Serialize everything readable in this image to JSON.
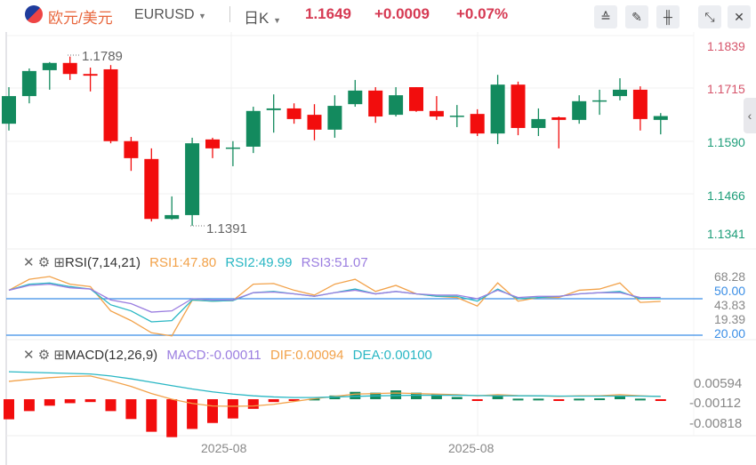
{
  "header": {
    "pair_name": "欧元/美元",
    "symbol": "EURUSD",
    "period": "日K",
    "price": "1.1649",
    "change": "+0.0009",
    "change_pct": "+0.07%",
    "toolbar": [
      {
        "icon": "indicator-icon",
        "glyph": "≙"
      },
      {
        "icon": "draw-pencil-icon",
        "glyph": "✎"
      },
      {
        "icon": "candlestick-type-icon",
        "glyph": "╫"
      },
      {
        "icon": "collapse-arrows-icon",
        "glyph": "⤡"
      },
      {
        "icon": "close-icon",
        "glyph": "✕"
      }
    ]
  },
  "colors": {
    "up": "#138a5e",
    "down": "#f20d0d",
    "accent": "#d63a53",
    "rsi1": "#f2a24a",
    "rsi2": "#2ab7c4",
    "rsi3": "#9b7ee0",
    "level": "#3a8ee6"
  },
  "price_axis": {
    "ticks": [
      "1.1839",
      "1.1715",
      "1.1590",
      "1.1466",
      "1.1341"
    ],
    "high_label": "1.1789",
    "low_label": "1.1391"
  },
  "x_axis": {
    "ticks": [
      "2025-08",
      "2025-08"
    ]
  },
  "rsi": {
    "title": "RSI(7,14,21)",
    "rsi1": "RSI1:47.80",
    "rsi2": "RSI2:49.99",
    "rsi3": "RSI3:51.07",
    "axis": [
      "68.28",
      "50.00",
      "43.83",
      "19.39",
      "20.00"
    ]
  },
  "macd": {
    "title": "MACD(12,26,9)",
    "macd": "MACD:-0.00011",
    "dif": "DIF:0.00094",
    "dea": "DEA:0.00100",
    "axis": [
      "0.00594",
      "-0.00112",
      "-0.00818"
    ]
  },
  "chart_data": {
    "type": "candlestick",
    "ylim": [
      1.1341,
      1.1839
    ],
    "candles": [
      [
        1.1631,
        1.1717,
        1.1615,
        1.1696
      ],
      [
        1.1696,
        1.1761,
        1.1679,
        1.1755
      ],
      [
        1.1757,
        1.1776,
        1.1711,
        1.1774
      ],
      [
        1.1774,
        1.1789,
        1.1734,
        1.1748
      ],
      [
        1.1748,
        1.1763,
        1.1707,
        1.1744
      ],
      [
        1.1759,
        1.1769,
        1.1585,
        1.159
      ],
      [
        1.159,
        1.16,
        1.152,
        1.155
      ],
      [
        1.1548,
        1.1573,
        1.1401,
        1.1407
      ],
      [
        1.1407,
        1.146,
        1.1405,
        1.1416
      ],
      [
        1.1416,
        1.1598,
        1.1391,
        1.1585
      ],
      [
        1.1594,
        1.1598,
        1.155,
        1.1573
      ],
      [
        1.1573,
        1.159,
        1.1531,
        1.1575
      ],
      [
        1.1577,
        1.1671,
        1.1562,
        1.1661
      ],
      [
        1.1663,
        1.17,
        1.161,
        1.1667
      ],
      [
        1.1667,
        1.1679,
        1.1631,
        1.1642
      ],
      [
        1.1652,
        1.1677,
        1.1592,
        1.1617
      ],
      [
        1.1617,
        1.1698,
        1.1598,
        1.1673
      ],
      [
        1.1677,
        1.1734,
        1.1671,
        1.1709
      ],
      [
        1.1709,
        1.1717,
        1.1633,
        1.1648
      ],
      [
        1.1652,
        1.1717,
        1.1648,
        1.1698
      ],
      [
        1.1717,
        1.1717,
        1.1659,
        1.1661
      ],
      [
        1.1661,
        1.1696,
        1.164,
        1.1648
      ],
      [
        1.1648,
        1.1675,
        1.1623,
        1.165
      ],
      [
        1.1654,
        1.1665,
        1.1602,
        1.1608
      ],
      [
        1.1608,
        1.1746,
        1.1583,
        1.1723
      ],
      [
        1.1723,
        1.173,
        1.1604,
        1.1621
      ],
      [
        1.1621,
        1.1667,
        1.1602,
        1.1642
      ],
      [
        1.1646,
        1.1648,
        1.1573,
        1.164
      ],
      [
        1.164,
        1.1698,
        1.1631,
        1.1684
      ],
      [
        1.1684,
        1.1711,
        1.1652,
        1.1686
      ],
      [
        1.1696,
        1.1738,
        1.1686,
        1.1711
      ],
      [
        1.1711,
        1.1719,
        1.1615,
        1.1642
      ],
      [
        1.164,
        1.1656,
        1.1606,
        1.1649
      ]
    ],
    "candle_fields": [
      "open",
      "high",
      "low",
      "close"
    ],
    "rsi1": [
      57,
      66,
      68.3,
      62,
      60,
      40,
      32,
      22,
      19.4,
      48.8,
      48,
      48.5,
      62,
      62.5,
      57,
      53,
      62,
      66,
      56,
      61,
      54,
      52,
      51,
      44,
      63,
      48,
      51,
      51,
      57,
      58,
      63,
      47,
      47.8
    ],
    "rsi2": [
      57,
      62,
      63,
      60,
      58,
      45,
      40,
      31,
      32,
      49,
      48,
      48.5,
      55,
      56,
      54,
      52,
      55,
      58,
      54,
      56,
      54,
      52,
      52,
      48,
      58,
      50,
      51,
      52,
      54,
      55,
      56,
      50,
      49.99
    ],
    "rsi3": [
      57,
      61,
      62,
      59,
      58,
      49,
      46,
      39,
      40,
      50,
      49,
      49,
      55,
      55.5,
      54,
      52,
      55,
      57,
      54,
      56,
      54,
      53,
      53,
      50,
      57,
      51,
      52,
      52,
      54,
      55,
      55,
      51,
      51.07
    ],
    "rsi_levels": [
      50,
      20
    ],
    "macd_hist": [
      -0.0071,
      -0.0042,
      -0.0023,
      -0.0014,
      -0.001,
      -0.0042,
      -0.007,
      -0.0115,
      -0.0134,
      -0.0105,
      -0.0084,
      -0.0068,
      -0.0034,
      -0.001,
      -0.0005,
      0.0002,
      0.0013,
      0.0026,
      0.0023,
      0.0031,
      0.0023,
      0.0018,
      0.0008,
      -0.0002,
      0.0013,
      0.0002,
      0.0002,
      -0.0002,
      0.0002,
      0.0003,
      0.0013,
      0.0002,
      -0.00011
    ],
    "dif": [
      0.0063,
      0.007,
      0.0076,
      0.008,
      0.0082,
      0.0065,
      0.0045,
      0.002,
      0.0,
      -0.0015,
      -0.0024,
      -0.0025,
      -0.0024,
      -0.0018,
      -0.0008,
      0.0002,
      0.001,
      0.0018,
      0.002,
      0.0022,
      0.002,
      0.0018,
      0.0016,
      0.0012,
      0.0016,
      0.0013,
      0.0012,
      0.001,
      0.0012,
      0.0012,
      0.0016,
      0.0012,
      0.00094
    ],
    "dea": [
      0.0097,
      0.0095,
      0.0093,
      0.0091,
      0.0089,
      0.0082,
      0.0072,
      0.006,
      0.0048,
      0.0036,
      0.0026,
      0.0018,
      0.0012,
      0.0008,
      0.0006,
      0.0006,
      0.0008,
      0.001,
      0.0012,
      0.0013,
      0.0014,
      0.0014,
      0.0014,
      0.0013,
      0.0012,
      0.0012,
      0.0012,
      0.0011,
      0.0011,
      0.0011,
      0.0011,
      0.0011,
      0.001
    ]
  }
}
